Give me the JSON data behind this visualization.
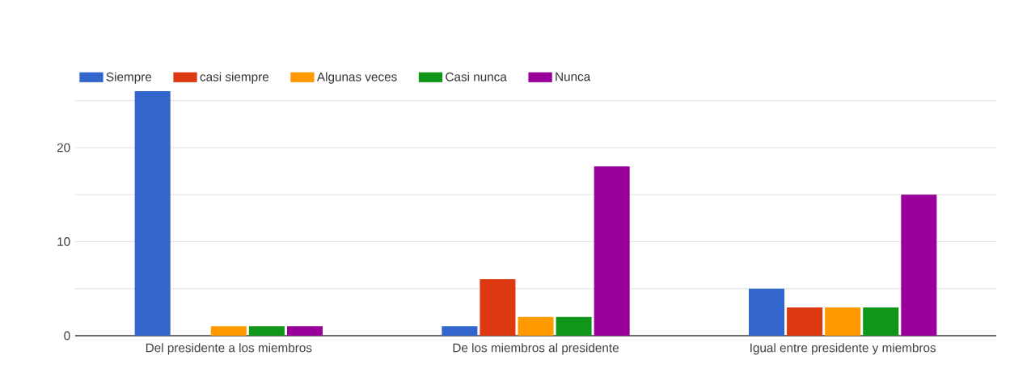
{
  "chart_data": {
    "type": "bar",
    "categories": [
      "Del presidente a los miembros",
      "De los miembros al presidente",
      "Igual entre presidente y miembros"
    ],
    "series": [
      {
        "name": "Siempre",
        "color": "#3366cc",
        "values": [
          26,
          1,
          5
        ]
      },
      {
        "name": "casi siempre",
        "color": "#dc3912",
        "values": [
          0,
          6,
          3
        ]
      },
      {
        "name": "Algunas veces",
        "color": "#ff9900",
        "values": [
          1,
          2,
          3
        ]
      },
      {
        "name": "Casi nunca",
        "color": "#109618",
        "values": [
          1,
          2,
          3
        ]
      },
      {
        "name": "Nunca",
        "color": "#990099",
        "values": [
          1,
          18,
          15
        ]
      }
    ],
    "ylim": [
      0,
      26
    ],
    "yticks": [
      0,
      {
        "value": 5,
        "label": null
      },
      10,
      {
        "value": 15,
        "label": null
      },
      20,
      {
        "value": 25,
        "label": null
      }
    ],
    "grid": "y",
    "legend": "top left"
  }
}
